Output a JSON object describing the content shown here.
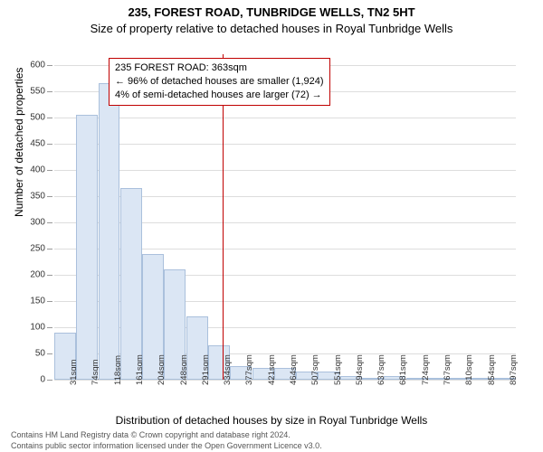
{
  "header": {
    "title1": "235, FOREST ROAD, TUNBRIDGE WELLS, TN2 5HT",
    "title2": "Size of property relative to detached houses in Royal Tunbridge Wells"
  },
  "axes": {
    "y_title": "Number of detached properties",
    "x_title": "Distribution of detached houses by size in Royal Tunbridge Wells",
    "ylim": [
      0,
      620
    ],
    "yticks": [
      0,
      50,
      100,
      150,
      200,
      250,
      300,
      350,
      400,
      450,
      500,
      550,
      600
    ]
  },
  "annotation": {
    "line1": "235 FOREST ROAD: 363sqm",
    "line2": "← 96% of detached houses are smaller (1,924)",
    "line3": "4% of semi-detached houses are larger (72) →"
  },
  "reference_value_x_index": 7.65,
  "bars": {
    "labels": [
      "31sqm",
      "74sqm",
      "118sqm",
      "161sqm",
      "204sqm",
      "248sqm",
      "291sqm",
      "334sqm",
      "377sqm",
      "421sqm",
      "464sqm",
      "507sqm",
      "551sqm",
      "594sqm",
      "637sqm",
      "681sqm",
      "724sqm",
      "767sqm",
      "810sqm",
      "854sqm",
      "897sqm"
    ],
    "values": [
      90,
      505,
      565,
      365,
      240,
      210,
      120,
      65,
      25,
      22,
      22,
      16,
      16,
      7,
      0,
      7,
      4,
      3,
      4,
      2,
      2
    ]
  },
  "style": {
    "bar_fill": "#dbe6f4",
    "bar_border": "#aac0dc",
    "grid_color": "#dddddd",
    "ref_color": "#c00000",
    "background": "#ffffff",
    "title_fontsize": 13,
    "axis_title_fontsize": 12,
    "tick_fontsize": 10,
    "xlabel_fontsize": 9.5,
    "annotation_fontsize": 11,
    "footer_fontsize": 9
  },
  "footer": {
    "line1": "Contains HM Land Registry data © Crown copyright and database right 2024.",
    "line2": "Contains public sector information licensed under the Open Government Licence v3.0."
  }
}
